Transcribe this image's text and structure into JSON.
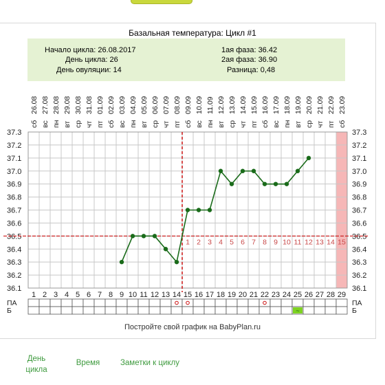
{
  "title": "Базальная температура: Цикл #1",
  "info": {
    "cycle_start": "Начало цикла: 26.08.2017",
    "cycle_day": "День цикла: 26",
    "ovulation_day": "День овуляции: 14",
    "phase1": "1ая фаза: 36.42",
    "phase2": "2ая фаза: 36.90",
    "difference": "Разница: 0,48"
  },
  "footer_text": "Постройте свой график на BabyPlan.ru",
  "bottom_tabs": [
    {
      "line1": "День",
      "line2": "цикла"
    },
    {
      "line1": "Время",
      "line2": ""
    },
    {
      "line1": "Заметки к циклу",
      "line2": ""
    }
  ],
  "colors": {
    "line": "#1a6b1a",
    "marker": "#cc1111",
    "highlight": "#f6b7b7",
    "panel": "#e5f2d3",
    "tab_text": "#3e9a3e"
  },
  "chart_data": {
    "type": "line",
    "title": "Базальная температура: Цикл #1",
    "x_days": [
      1,
      2,
      3,
      4,
      5,
      6,
      7,
      8,
      9,
      10,
      11,
      12,
      13,
      14,
      15,
      16,
      17,
      18,
      19,
      20,
      21,
      22,
      23,
      24,
      25,
      26,
      27,
      28,
      29
    ],
    "dates": [
      "26.08",
      "27.08",
      "28.08",
      "29.08",
      "30.08",
      "31.08",
      "01.09",
      "02.09",
      "03.09",
      "04.09",
      "05.09",
      "06.09",
      "07.09",
      "08.09",
      "09.09",
      "10.09",
      "11.09",
      "12.09",
      "13.09",
      "14.09",
      "15.09",
      "16.09",
      "17.09",
      "18.09",
      "19.09",
      "20.09",
      "21.09",
      "22.09",
      "23.09"
    ],
    "weekdays": [
      "сб",
      "вс",
      "пн",
      "вт",
      "ср",
      "чт",
      "пт",
      "сб",
      "вс",
      "пн",
      "вт",
      "ср",
      "чт",
      "пт",
      "сб",
      "вс",
      "пн",
      "вт",
      "ср",
      "чт",
      "пт",
      "сб",
      "вс",
      "пн",
      "вт",
      "ср",
      "чт",
      "пт",
      "сб"
    ],
    "ylim": [
      36.1,
      37.3
    ],
    "y_ticks": [
      "36.1",
      "36.2",
      "36.3",
      "36.4",
      "36.5",
      "36.6",
      "36.7",
      "36.8",
      "36.9",
      "37.0",
      "37.1",
      "37.2",
      "37.3"
    ],
    "series": [
      {
        "points": [
          [
            9,
            36.3
          ],
          [
            10,
            36.5
          ],
          [
            11,
            36.5
          ],
          [
            12,
            36.5
          ],
          [
            13,
            36.4
          ],
          [
            14,
            36.3
          ],
          [
            15,
            36.7
          ],
          [
            16,
            36.7
          ],
          [
            17,
            36.7
          ],
          [
            18,
            37.0
          ],
          [
            19,
            36.9
          ],
          [
            20,
            37.0
          ],
          [
            21,
            37.0
          ],
          [
            22,
            36.9
          ],
          [
            23,
            36.9
          ],
          [
            24,
            36.9
          ],
          [
            25,
            37.0
          ],
          [
            26,
            37.1
          ]
        ]
      }
    ],
    "coverline": 36.5,
    "ovulation_day": 14,
    "phase2_labels": [
      "1",
      "2",
      "3",
      "4",
      "5",
      "6",
      "7",
      "8",
      "9",
      "10",
      "11",
      "12",
      "13",
      "14",
      "15"
    ],
    "highlight_day": 29,
    "row_labels": [
      "ПА",
      "Б"
    ],
    "pa_marks": [
      14,
      15,
      22
    ],
    "b_marks": [
      25
    ],
    "b_mark_symbol": "~"
  }
}
